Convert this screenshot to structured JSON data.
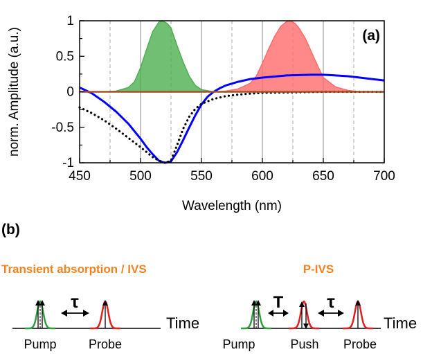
{
  "panel_a": {
    "label": "(a)",
    "chart_data": {
      "type": "line",
      "xlabel": "Wavelength (nm)",
      "ylabel": "norm. Amplitude (a.u.)",
      "xlim": [
        450,
        700
      ],
      "ylim": [
        -1,
        1
      ],
      "xticks": [
        "450",
        "500",
        "550",
        "600",
        "650",
        "700"
      ],
      "yticks": [
        "1",
        "0.5",
        "0",
        "-0.5",
        "-1"
      ],
      "grid": "vertical lines: solid at 500, 550, 600, 650; dashed at 475, 525, 575, 625, 675",
      "series": [
        {
          "style": "filled area",
          "color": "#4caf50",
          "x": [
            470,
            480,
            490,
            495,
            500,
            505,
            510,
            515,
            518,
            522,
            525,
            530,
            535,
            540,
            545,
            550,
            560,
            570
          ],
          "y": [
            0.0,
            0.01,
            0.06,
            0.14,
            0.34,
            0.6,
            0.85,
            0.98,
            1.0,
            0.96,
            0.9,
            0.65,
            0.42,
            0.22,
            0.09,
            0.03,
            0.0,
            0.0
          ]
        },
        {
          "style": "filled area",
          "color": "#ff6b6b",
          "x": [
            560,
            570,
            580,
            590,
            595,
            600,
            605,
            610,
            615,
            620,
            623,
            627,
            630,
            635,
            640,
            645,
            650,
            660,
            670,
            680,
            690
          ],
          "y": [
            0.0,
            0.01,
            0.04,
            0.12,
            0.22,
            0.4,
            0.6,
            0.78,
            0.92,
            0.99,
            1.0,
            0.96,
            0.9,
            0.76,
            0.57,
            0.38,
            0.2,
            0.07,
            0.02,
            0.0,
            0.0
          ]
        },
        {
          "style": "solid line",
          "color": "#0000ff",
          "x": [
            450,
            460,
            470,
            480,
            490,
            500,
            505,
            510,
            515,
            520,
            525,
            530,
            535,
            540,
            545,
            550,
            555,
            560,
            565,
            570,
            580,
            590,
            600,
            620,
            640,
            650,
            660,
            670,
            680,
            690,
            700
          ],
          "y": [
            0.06,
            -0.02,
            -0.14,
            -0.28,
            -0.45,
            -0.66,
            -0.78,
            -0.88,
            -0.97,
            -1.0,
            -0.98,
            -0.85,
            -0.68,
            -0.5,
            -0.33,
            -0.18,
            -0.07,
            0.0,
            0.05,
            0.09,
            0.14,
            0.18,
            0.2,
            0.23,
            0.24,
            0.24,
            0.23,
            0.22,
            0.2,
            0.18,
            0.16
          ]
        },
        {
          "style": "dotted line",
          "color": "#000000",
          "x": [
            450,
            460,
            470,
            480,
            490,
            500,
            505,
            510,
            515,
            520,
            525,
            530,
            535,
            540,
            545,
            550,
            560,
            570,
            580,
            590,
            600,
            620,
            650,
            700
          ],
          "y": [
            -0.22,
            -0.3,
            -0.4,
            -0.52,
            -0.65,
            -0.78,
            -0.85,
            -0.92,
            -0.97,
            -1.0,
            -0.97,
            -0.75,
            -0.52,
            -0.35,
            -0.24,
            -0.17,
            -0.1,
            -0.06,
            -0.04,
            -0.025,
            -0.015,
            -0.01,
            0.0,
            0.0
          ]
        },
        {
          "style": "solid line",
          "color": "#a0522d",
          "x": [
            450,
            700
          ],
          "y": [
            0.0,
            0.0
          ]
        }
      ]
    }
  },
  "panel_b": {
    "label": "(b)",
    "left": {
      "title": "Transient absorption / IVS",
      "delay_symbol": "τ",
      "time_label": "Time",
      "pulses": [
        "Pump",
        "Probe"
      ]
    },
    "right": {
      "title": "P-IVS",
      "delay_symbol_1": "T",
      "delay_symbol_2": "τ",
      "time_label": "Time",
      "pulses": [
        "Pump",
        "Push",
        "Probe"
      ]
    },
    "colors": {
      "pump": "#2e9e3e",
      "red_pulse": "#e02020",
      "title": "#f58220"
    }
  }
}
